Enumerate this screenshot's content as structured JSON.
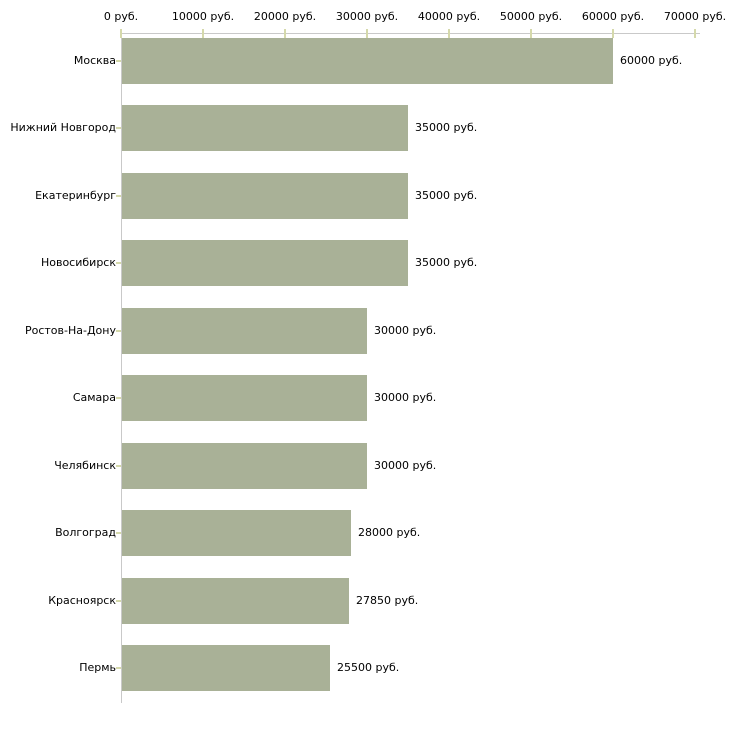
{
  "chart_data": {
    "type": "bar",
    "orientation": "horizontal",
    "title": "",
    "xlabel": "",
    "ylabel": "",
    "unit": "руб.",
    "categories": [
      "Москва",
      "Нижний Новгород",
      "Екатеринбург",
      "Новосибирск",
      "Ростов-На-Дону",
      "Самара",
      "Челябинск",
      "Волгоград",
      "Красноярск",
      "Пермь"
    ],
    "values": [
      60000,
      35000,
      35000,
      35000,
      30000,
      30000,
      30000,
      28000,
      27850,
      25500
    ],
    "value_labels": [
      "60000 руб.",
      "35000 руб.",
      "35000 руб.",
      "35000 руб.",
      "30000 руб.",
      "30000 руб.",
      "30000 руб.",
      "28000 руб.",
      "27850 руб.",
      "25500 руб."
    ],
    "x_axis": {
      "position": "top",
      "range": [
        0,
        70000
      ],
      "ticks": [
        0,
        10000,
        20000,
        30000,
        40000,
        50000,
        60000,
        70000
      ],
      "tick_labels": [
        "0 руб.",
        "10000 руб.",
        "20000 руб.",
        "30000 руб.",
        "40000 руб.",
        "50000 руб.",
        "60000 руб.",
        "70000 руб."
      ]
    },
    "grid": false,
    "legend": false,
    "colors": {
      "bar": "#a9b197",
      "axis_line": "#c9c9c9",
      "tick": "#d5d9ab",
      "text": "#000000",
      "background": "#ffffff"
    }
  }
}
